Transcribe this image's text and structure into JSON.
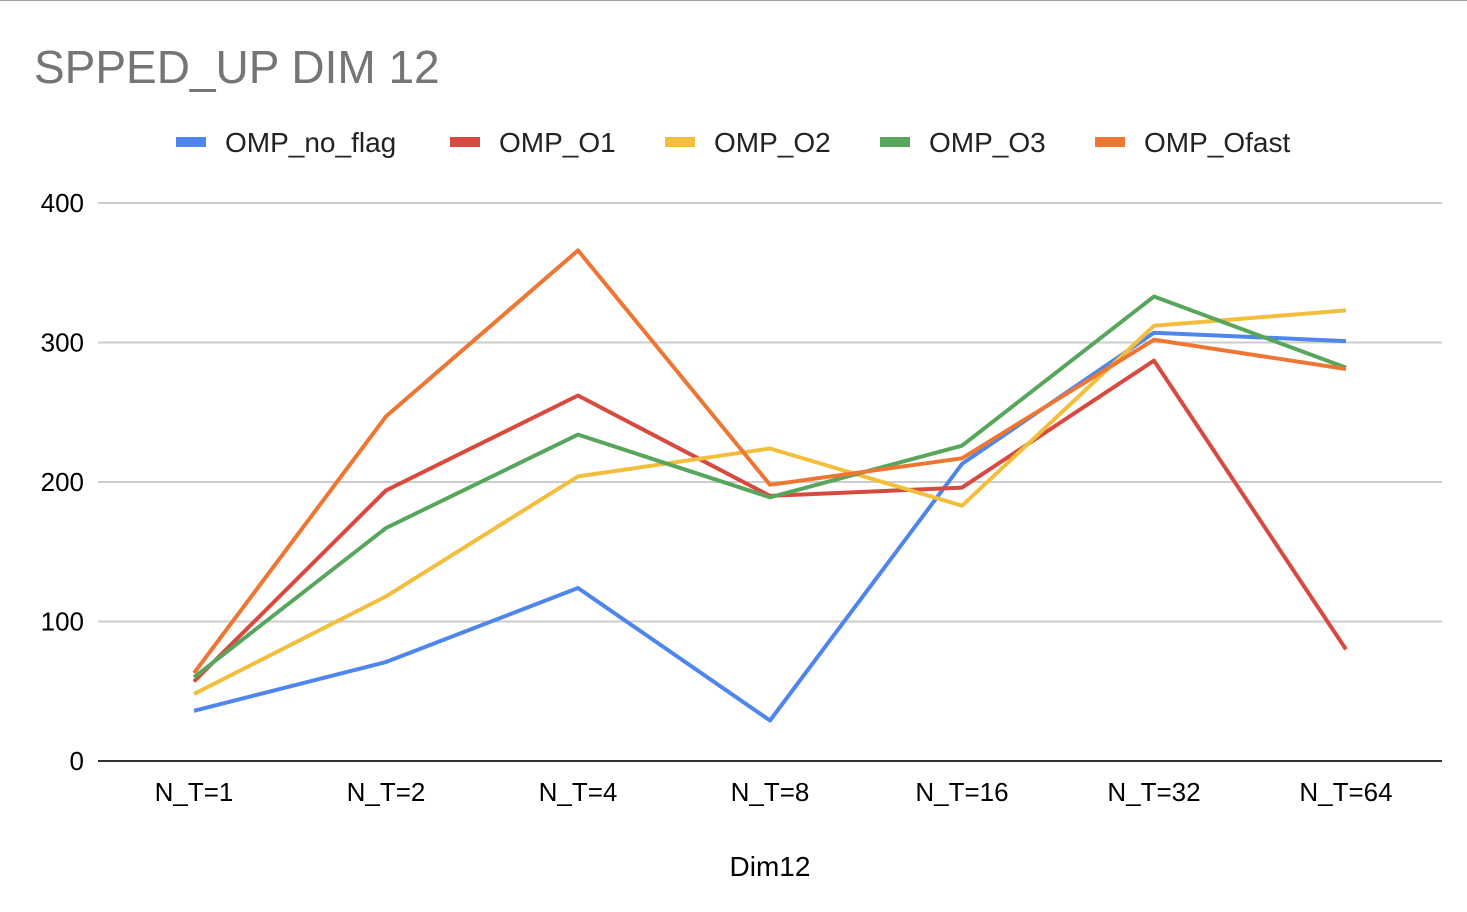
{
  "chart_data": {
    "type": "line",
    "title": "SPPED_UP DIM 12",
    "xlabel": "Dim12",
    "ylabel": "",
    "categories": [
      "N_T=1",
      "N_T=2",
      "N_T=4",
      "N_T=8",
      "N_T=16",
      "N_T=32",
      "N_T=64"
    ],
    "ylim": [
      0,
      400
    ],
    "yticks": [
      0,
      100,
      200,
      300,
      400
    ],
    "grid": true,
    "legend_position": "top",
    "series": [
      {
        "name": "OMP_no_flag",
        "color": "#4f86ec",
        "values": [
          36,
          71,
          124,
          29,
          213,
          307,
          301
        ]
      },
      {
        "name": "OMP_O1",
        "color": "#d8493f",
        "values": [
          57,
          194,
          262,
          190,
          196,
          287,
          80
        ]
      },
      {
        "name": "OMP_O2",
        "color": "#f3be3c",
        "values": [
          48,
          118,
          204,
          224,
          183,
          312,
          323
        ]
      },
      {
        "name": "OMP_O3",
        "color": "#58a65c",
        "values": [
          60,
          167,
          234,
          189,
          226,
          333,
          282
        ]
      },
      {
        "name": "OMP_Ofast",
        "color": "#ed7633",
        "values": [
          63,
          247,
          366,
          198,
          217,
          302,
          281
        ]
      }
    ]
  }
}
